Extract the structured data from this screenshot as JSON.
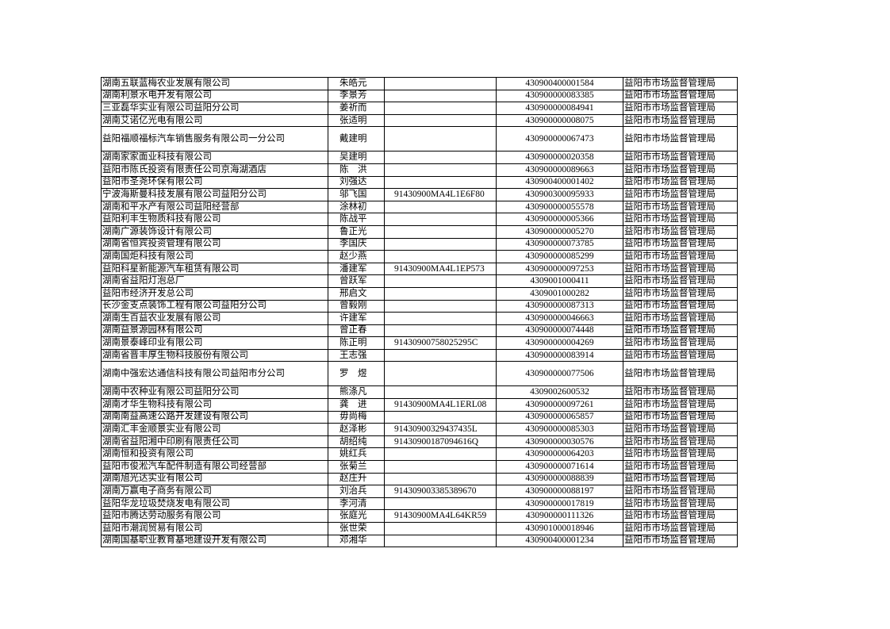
{
  "table": {
    "rows": [
      [
        "湖南五联蓝梅农业发展有限公司",
        "朱皓元",
        null,
        "430900400001584",
        "益阳市市场监督管理局"
      ],
      [
        "湖南利景水电开发有限公司",
        "李景芳",
        null,
        "430900000083385",
        "益阳市市场监督管理局"
      ],
      [
        "三亚磊华实业有限公司益阳分公司",
        "姜祈而",
        null,
        "430900000084941",
        "益阳市市场监督管理局"
      ],
      [
        "湖南艾诺亿光电有限公司",
        "张适明",
        null,
        "430900000008075",
        "益阳市市场监督管理局"
      ],
      [
        "益阳福顺福标汽车销售服务有限公司一分公司",
        "戴建明",
        null,
        "430900000067473",
        "益阳市市场监督管理局"
      ],
      [
        "湖南家家面业科技有限公司",
        "吴建明",
        null,
        "430900000020358",
        "益阳市市场监督管理局"
      ],
      [
        "益阳市陈氏投资有限责任公司京海湖酒店",
        "陈　洪",
        null,
        "430900000089663",
        "益阳市市场监督管理局"
      ],
      [
        "益阳市圣尧环保有限公司",
        "刘强达",
        null,
        "430900400001402",
        "益阳市市场监督管理局"
      ],
      [
        "宁波海斯曼科技发展有限公司益阳分公司",
        "邬飞国",
        "91430900MA4L1E6F80",
        "430900300095933",
        "益阳市市场监督管理局"
      ],
      [
        "湖南和平水产有限公司益阳经营部",
        "涂林初",
        null,
        "430900000055578",
        "益阳市市场监督管理局"
      ],
      [
        "益阳利丰生物质科技有限公司",
        "陈战平",
        null,
        "430900000005366",
        "益阳市市场监督管理局"
      ],
      [
        "湖南广源装饰设计有限公司",
        "鲁正光",
        null,
        "430900000005270",
        "益阳市市场监督管理局"
      ],
      [
        "湖南省恒宾投资管理有限公司",
        "李国庆",
        null,
        "430900000073785",
        "益阳市市场监督管理局"
      ],
      [
        "湖南国炬科技有限公司",
        "赵少燕",
        null,
        "430900000085299",
        "益阳市市场监督管理局"
      ],
      [
        "益阳科星新能源汽车租赁有限公司",
        "潘建军",
        "91430900MA4L1EP573",
        "430900000097253",
        "益阳市市场监督管理局"
      ],
      [
        "湖南省益阳灯泡总厂",
        "曾跃军",
        null,
        "4309001000411",
        "益阳市市场监督管理局"
      ],
      [
        "益阳市经济开发总公司",
        "邢启文",
        null,
        "4309001000282",
        "益阳市市场监督管理局"
      ],
      [
        "长沙金支点装饰工程有限公司益阳分公司",
        "曾毅刚",
        null,
        "430900000087313",
        "益阳市市场监督管理局"
      ],
      [
        "湖南生百益农业发展有限公司",
        "许建军",
        null,
        "430900000046663",
        "益阳市市场监督管理局"
      ],
      [
        "湖南益景源园林有限公司",
        "曾正春",
        null,
        "430900000074448",
        "益阳市市场监督管理局"
      ],
      [
        "湖南景泰峰印业有限公司",
        "陈正明",
        "91430900758025295C",
        "430900000004269",
        "益阳市市场监督管理局"
      ],
      [
        "湖南省晋丰厚生物科技股份有限公司",
        "王志强",
        null,
        "430900000083914",
        "益阳市市场监督管理局"
      ],
      [
        "湖南中强宏达通信科技有限公司益阳市分公司",
        "罗　煜",
        null,
        "430900000077506",
        "益阳市市场监督管理局"
      ],
      [
        "湖南中农种业有限公司益阳分公司",
        "熊涤凡",
        null,
        "4309002600532",
        "益阳市市场监督管理局"
      ],
      [
        "湖南才华生物科技有限公司",
        "龚　进",
        "91430900MA4L1ERL08",
        "430900000097261",
        "益阳市市场监督管理局"
      ],
      [
        "湖南南益高速公路开发建设有限公司",
        "毋尚梅",
        null,
        "430900000065857",
        "益阳市市场监督管理局"
      ],
      [
        "湖南汇丰金顺景实业有限公司",
        "赵泽彬",
        "91430900329437435L",
        "430900000085303",
        "益阳市市场监督管理局"
      ],
      [
        "湖南省益阳湘中印刷有限责任公司",
        "胡绍纯",
        "91430900187094616Q",
        "430900000030576",
        "益阳市市场监督管理局"
      ],
      [
        "湖南恒和投资有限公司",
        "姚红兵",
        null,
        "430900000064203",
        "益阳市市场监督管理局"
      ],
      [
        "益阳市俊淞汽车配件制造有限公司经营部",
        "张菊兰",
        null,
        "430900000071614",
        "益阳市市场监督管理局"
      ],
      [
        "湖南旭光达实业有限公司",
        "赵庄升",
        null,
        "430900000088839",
        "益阳市市场监督管理局"
      ],
      [
        "湖南万赢电子商务有限公司",
        "刘治兵",
        "914309003385389670",
        "430900000088197",
        "益阳市市场监督管理局"
      ],
      [
        "益阳华龙垃圾焚烧发电有限公司",
        "李河清",
        null,
        "430900000017819",
        "益阳市市场监督管理局"
      ],
      [
        "益阳市腾达劳动服务有限公司",
        "张庭光",
        "91430900MA4L64KR59",
        "430900000111326",
        "益阳市市场监督管理局"
      ],
      [
        "益阳市潮润贸易有限公司",
        "张世荣",
        null,
        "430901000018946",
        "益阳市市场监督管理局"
      ],
      [
        "湖南国基职业教育基地建设开发有限公司",
        "邓湘华",
        null,
        "430900400001234",
        "益阳市市场监督管理局"
      ]
    ]
  }
}
